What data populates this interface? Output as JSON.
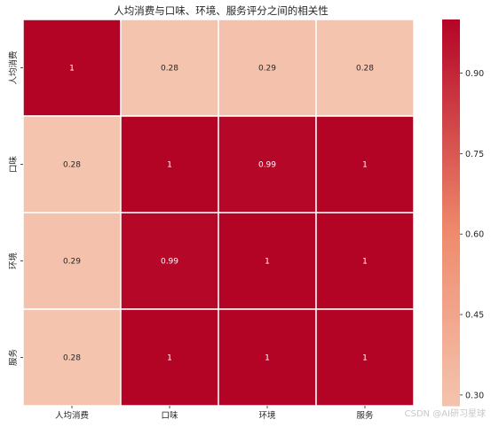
{
  "chart_data": {
    "type": "heatmap",
    "title": "人均消费与口味、环境、服务评分之间的相关性",
    "x_categories": [
      "人均消费",
      "口味",
      "环境",
      "服务"
    ],
    "y_categories": [
      "人均消费",
      "口味",
      "环境",
      "服务"
    ],
    "values": [
      [
        1,
        0.28,
        0.29,
        0.28
      ],
      [
        0.28,
        1,
        0.99,
        1
      ],
      [
        0.29,
        0.99,
        1,
        1
      ],
      [
        0.28,
        1,
        1,
        1
      ]
    ],
    "annotations": [
      [
        "1",
        "0.28",
        "0.29",
        "0.28"
      ],
      [
        "0.28",
        "1",
        "0.99",
        "1"
      ],
      [
        "0.29",
        "0.99",
        "1",
        "1"
      ],
      [
        "0.28",
        "1",
        "1",
        "1"
      ]
    ],
    "colormap": "coolwarm",
    "value_range": [
      0.28,
      1
    ],
    "colorbar_ticks": [
      0.3,
      0.45,
      0.6,
      0.75,
      0.9
    ],
    "colorbar_tick_labels": [
      "0.30",
      "0.45",
      "0.60",
      "0.75",
      "0.90"
    ],
    "colors": {
      "low": "#f4c4ae",
      "mid": "#ef8a6c",
      "high": "#b40426",
      "gridline": "#ffffff"
    }
  },
  "watermark": "CSDN @AI研习星球"
}
